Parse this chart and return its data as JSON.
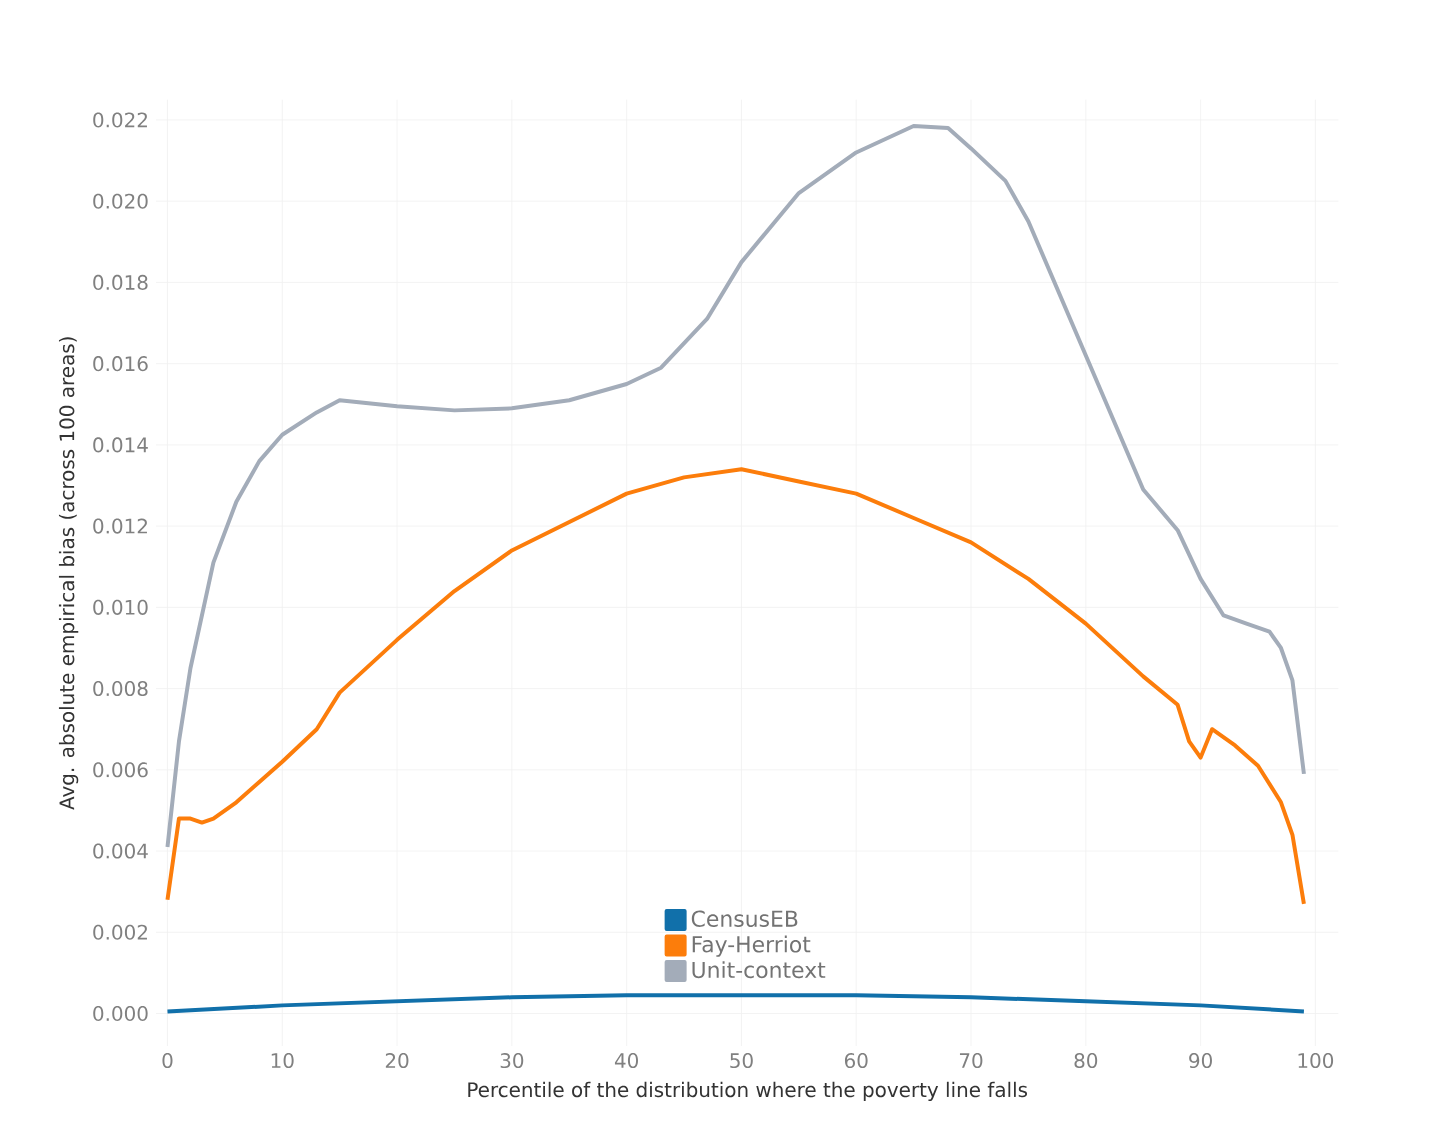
{
  "chart_data": {
    "type": "line",
    "xlabel": "Percentile of the distribution where the poverty line falls",
    "ylabel": "Avg. absolute empirical bias (across 100 areas)",
    "xlim": [
      -1,
      102
    ],
    "ylim": [
      -0.0008,
      0.0225
    ],
    "xticks": [
      0,
      10,
      20,
      30,
      40,
      50,
      60,
      70,
      80,
      90,
      100
    ],
    "yticks": [
      {
        "value": 0,
        "label": "0.000"
      },
      {
        "value": 0.002,
        "label": "0.002"
      },
      {
        "value": 0.004,
        "label": "0.004"
      },
      {
        "value": 0.006,
        "label": "0.006"
      },
      {
        "value": 0.008,
        "label": "0.008"
      },
      {
        "value": 0.01,
        "label": "0.010"
      },
      {
        "value": 0.012,
        "label": "0.012"
      },
      {
        "value": 0.014,
        "label": "0.014"
      },
      {
        "value": 0.016,
        "label": "0.016"
      },
      {
        "value": 0.018,
        "label": "0.018"
      },
      {
        "value": 0.02,
        "label": "0.020"
      },
      {
        "value": 0.022,
        "label": "0.022"
      }
    ],
    "grid": true,
    "legend": "bottom",
    "marker": "none",
    "line_style": "solid",
    "series": [
      {
        "name": "CensusEB",
        "color": "#1170aa",
        "x": [
          0,
          10,
          20,
          30,
          40,
          50,
          60,
          70,
          80,
          90,
          99
        ],
        "values": [
          5e-05,
          0.0002,
          0.0003,
          0.0004,
          0.00045,
          0.00045,
          0.00045,
          0.0004,
          0.0003,
          0.0002,
          5e-05
        ]
      },
      {
        "name": "Fay-Herriot",
        "color": "#fc7d0b",
        "x": [
          0,
          1,
          2,
          3,
          4,
          6,
          8,
          10,
          13,
          15,
          20,
          25,
          30,
          35,
          40,
          45,
          50,
          55,
          60,
          65,
          70,
          75,
          80,
          85,
          88,
          89,
          90,
          91,
          93,
          95,
          97,
          98,
          99
        ],
        "values": [
          0.0028,
          0.0048,
          0.0048,
          0.0047,
          0.0048,
          0.0052,
          0.0057,
          0.0062,
          0.007,
          0.0079,
          0.0092,
          0.0104,
          0.0114,
          0.0121,
          0.0128,
          0.0132,
          0.0134,
          0.0131,
          0.0128,
          0.0122,
          0.0116,
          0.0107,
          0.0096,
          0.0083,
          0.0076,
          0.0067,
          0.0063,
          0.007,
          0.0066,
          0.0061,
          0.0052,
          0.0044,
          0.0027
        ]
      },
      {
        "name": "Unit-context",
        "color": "#a3acb9",
        "x": [
          0,
          1,
          2,
          4,
          6,
          8,
          10,
          13,
          15,
          20,
          25,
          30,
          35,
          40,
          43,
          47,
          50,
          55,
          60,
          65,
          68,
          70,
          73,
          75,
          80,
          85,
          88,
          90,
          92,
          94,
          96,
          97,
          98,
          99
        ],
        "values": [
          0.0041,
          0.0067,
          0.0085,
          0.0111,
          0.0126,
          0.0136,
          0.01425,
          0.0148,
          0.0151,
          0.01495,
          0.01485,
          0.0149,
          0.0151,
          0.0155,
          0.0159,
          0.0171,
          0.0185,
          0.0202,
          0.0212,
          0.02185,
          0.0218,
          0.0213,
          0.0205,
          0.0195,
          0.0162,
          0.0129,
          0.0119,
          0.0107,
          0.0098,
          0.0096,
          0.0094,
          0.009,
          0.0082,
          0.0059
        ]
      }
    ]
  }
}
